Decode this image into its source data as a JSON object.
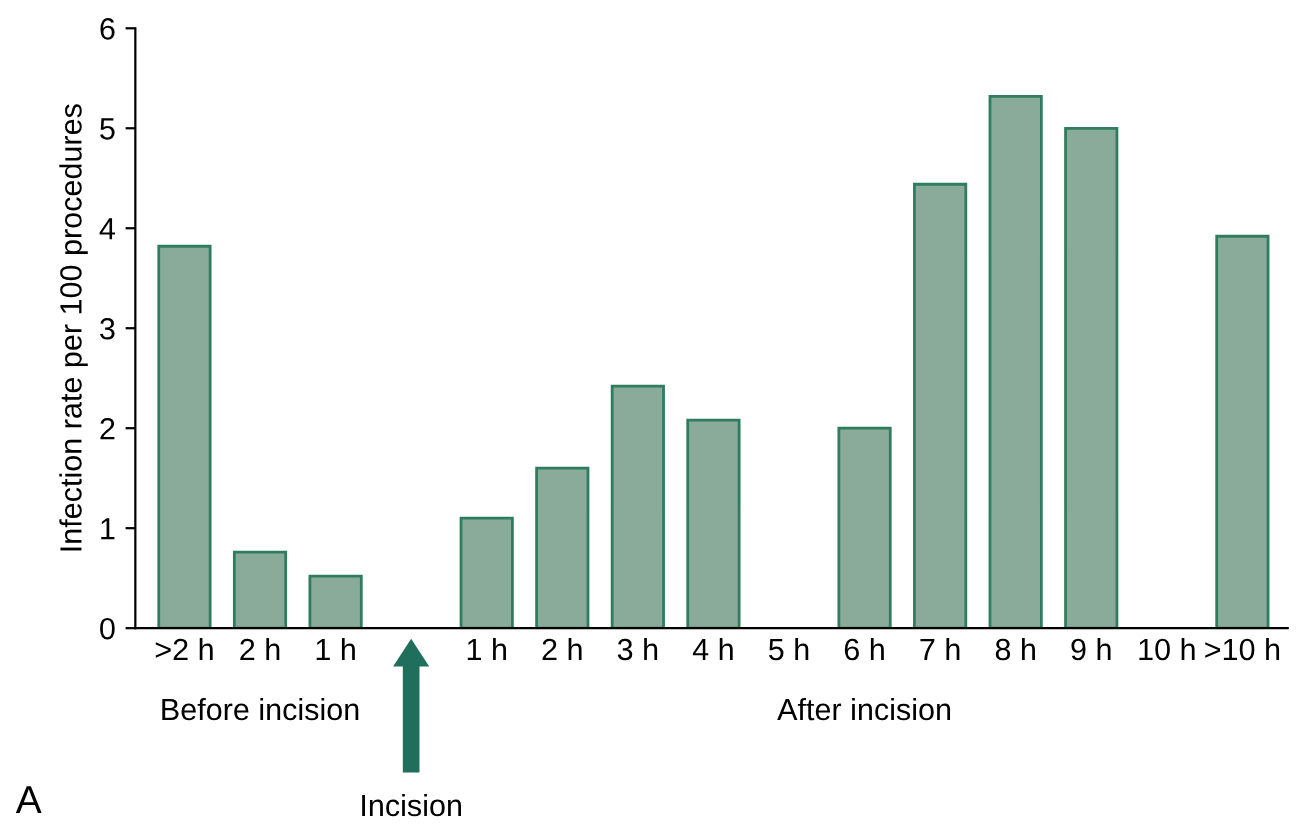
{
  "chart_data": {
    "type": "bar",
    "ylabel": "Infection rate per 100 procedures",
    "categories": [
      ">2 h",
      "2 h",
      "1 h",
      null,
      "1 h",
      "2 h",
      "3 h",
      "4 h",
      "5 h",
      "6 h",
      "7 h",
      "8 h",
      "9 h",
      "10 h",
      ">10 h"
    ],
    "values": [
      3.82,
      0.76,
      0.52,
      null,
      1.1,
      1.6,
      2.42,
      2.08,
      null,
      2.0,
      4.44,
      5.32,
      5.0,
      null,
      3.92
    ],
    "color": "#8aab9a",
    "ylim": [
      0,
      6
    ],
    "yticks": [
      0,
      1,
      2,
      3,
      4,
      5,
      6
    ],
    "grid": false,
    "legend": false,
    "annotations": [
      "Before incision",
      "After incision",
      "Incision",
      "A"
    ]
  }
}
